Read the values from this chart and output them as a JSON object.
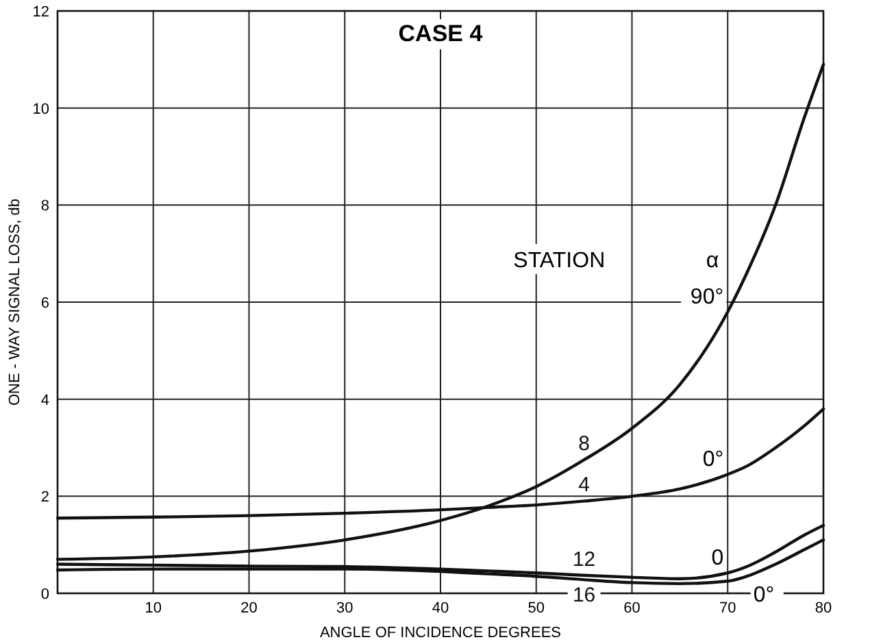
{
  "chart_data": {
    "type": "line",
    "title": "CASE 4",
    "xlabel": "ANGLE  OF  INCIDENCE   DEGREES",
    "ylabel": "ONE - WAY  SIGNAL  LOSS,  db",
    "xlim": [
      0,
      80
    ],
    "xticks": [
      10,
      20,
      30,
      40,
      50,
      60,
      70,
      80
    ],
    "ylim": [
      0,
      12
    ],
    "yticks": [
      0,
      2,
      4,
      6,
      8,
      10,
      12
    ],
    "grid": true,
    "legend": false,
    "marker": "none",
    "line_style": "solid",
    "x": [
      0,
      10,
      20,
      30,
      40,
      45,
      50,
      55,
      60,
      65,
      70,
      72,
      75,
      78,
      80
    ],
    "series": [
      {
        "name": "8",
        "color": "#111111",
        "values": [
          0.7,
          0.75,
          0.87,
          1.1,
          1.5,
          1.8,
          2.2,
          2.75,
          3.4,
          4.3,
          5.8,
          6.6,
          8.0,
          9.8,
          10.9
        ]
      },
      {
        "name": "4",
        "color": "#111111",
        "values": [
          1.55,
          1.57,
          1.6,
          1.65,
          1.72,
          1.77,
          1.82,
          1.9,
          2.0,
          2.15,
          2.45,
          2.62,
          3.0,
          3.45,
          3.8
        ]
      },
      {
        "name": "12",
        "color": "#111111",
        "values": [
          0.6,
          0.58,
          0.56,
          0.55,
          0.5,
          0.46,
          0.42,
          0.37,
          0.33,
          0.3,
          0.42,
          0.55,
          0.85,
          1.2,
          1.4
        ]
      },
      {
        "name": "16",
        "color": "#111111",
        "values": [
          0.48,
          0.5,
          0.5,
          0.5,
          0.45,
          0.4,
          0.35,
          0.28,
          0.22,
          0.2,
          0.25,
          0.35,
          0.6,
          0.9,
          1.1
        ]
      }
    ],
    "annotations": [
      "STATION",
      "α",
      "90°",
      "0°",
      "0",
      "0°"
    ]
  }
}
